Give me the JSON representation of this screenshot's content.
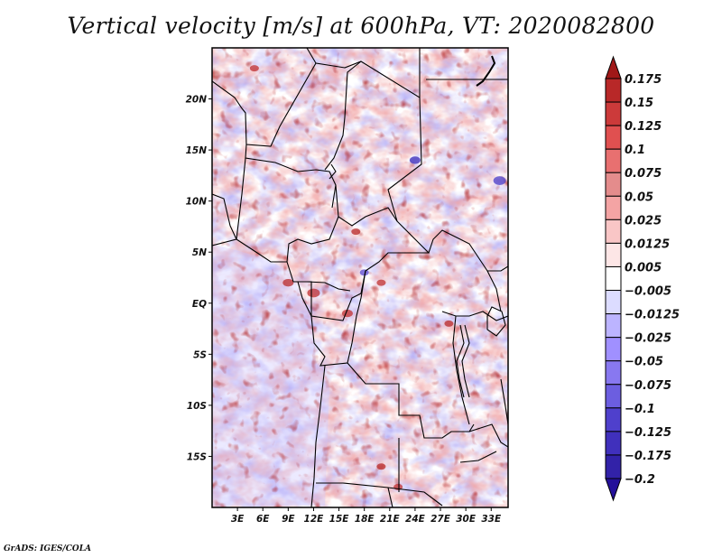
{
  "title": "Vertical velocity [m/s] at 600hPa, VT: 2020082800",
  "credit": "GrADS: IGES/COLA",
  "chart_data": {
    "type": "heatmap",
    "title": "Vertical velocity [m/s] at 600hPa, VT: 2020082800",
    "variable": "Vertical velocity",
    "units": "m/s",
    "level": "600hPa",
    "valid_time": "2020082800",
    "xlabel": "",
    "ylabel": "",
    "x_ticks": [
      "3E",
      "6E",
      "9E",
      "12E",
      "15E",
      "18E",
      "21E",
      "24E",
      "27E",
      "30E",
      "33E"
    ],
    "x_tick_values": [
      3,
      6,
      9,
      12,
      15,
      18,
      21,
      24,
      27,
      30,
      33
    ],
    "y_ticks": [
      "20N",
      "15N",
      "10N",
      "5N",
      "EQ",
      "5S",
      "10S",
      "15S"
    ],
    "y_tick_values": [
      20,
      15,
      10,
      5,
      0,
      -5,
      -10,
      -15
    ],
    "xlim": [
      0,
      35
    ],
    "ylim": [
      -20,
      25
    ],
    "grid": false,
    "legend": "right",
    "colorbar": {
      "levels": [
        0.175,
        0.15,
        0.125,
        0.1,
        0.075,
        0.05,
        0.025,
        0.0125,
        0.005,
        -0.005,
        -0.0125,
        -0.025,
        -0.05,
        -0.075,
        -0.1,
        -0.125,
        -0.175,
        -0.2
      ],
      "labels": [
        "0.175",
        "0.15",
        "0.125",
        "0.1",
        "0.075",
        "0.05",
        "0.025",
        "0.0125",
        "0.005",
        "−0.005",
        "−0.0125",
        "−0.025",
        "−0.05",
        "−0.075",
        "−0.1",
        "−0.125",
        "−0.175",
        "−0.2"
      ],
      "colors": [
        "#a01818",
        "#b82828",
        "#cc3a3a",
        "#e05050",
        "#e87070",
        "#e48c8c",
        "#f4a4a4",
        "#f9c6c6",
        "#fde6e6",
        "#ffffff",
        "#dcdcff",
        "#bcb4ff",
        "#a090ff",
        "#8878f0",
        "#6c5ee0",
        "#4f40cc",
        "#4030bc",
        "#3222a8",
        "#24109a"
      ],
      "top_arrow_color": "#a01818",
      "bottom_arrow_color": "#24109a"
    },
    "regions": "Central/West Africa, approx. 0E-35E, 20S-25N",
    "description": "Noisy field alternating between light red (weak ascent) and light blue/purple (weak descent); strongest red cells near Cameroon/Gabon/Congo and East African lakes; strong blue streak in Sudan/Chad region."
  }
}
